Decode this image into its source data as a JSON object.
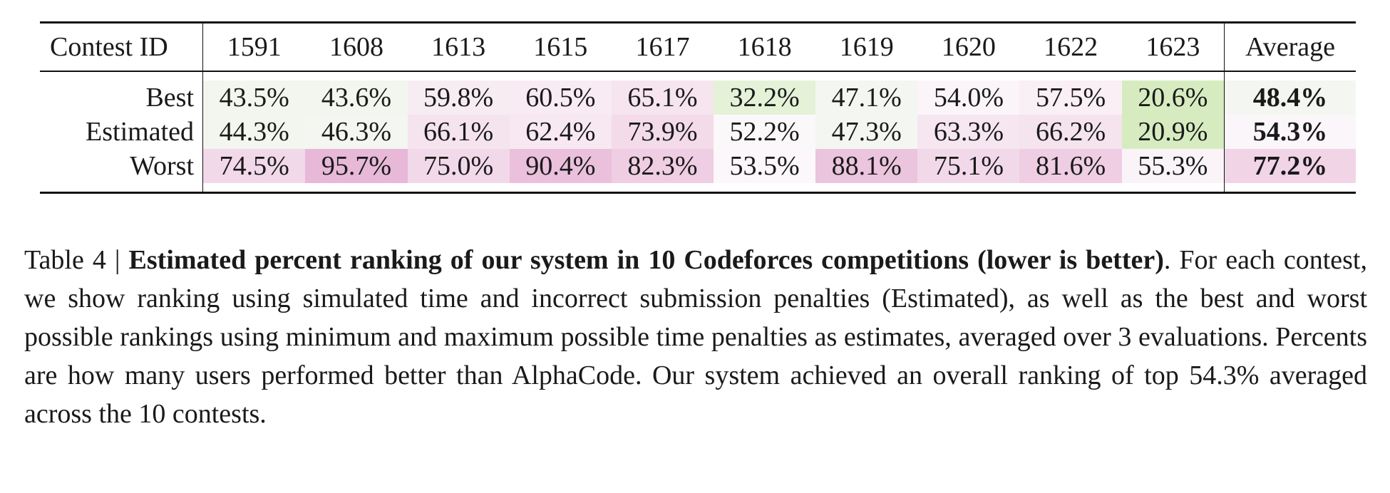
{
  "table": {
    "header_label": "Contest ID",
    "contest_ids": [
      "1591",
      "1608",
      "1613",
      "1615",
      "1617",
      "1618",
      "1619",
      "1620",
      "1622",
      "1623"
    ],
    "average_label": "Average",
    "rows": [
      {
        "label": "Best",
        "values": [
          "43.5%",
          "43.6%",
          "59.8%",
          "60.5%",
          "65.1%",
          "32.2%",
          "47.1%",
          "54.0%",
          "57.5%",
          "20.6%"
        ],
        "colors": [
          "#f2f6ee",
          "#f2f6ee",
          "#f8ecf3",
          "#f8ebf3",
          "#f6e4ef",
          "#e4f2d8",
          "#f4f6f1",
          "#fbf5f9",
          "#f9eff5",
          "#d6ecc0"
        ],
        "average": "48.4%",
        "average_color": "#f4f6f1"
      },
      {
        "label": "Estimated",
        "values": [
          "44.3%",
          "46.3%",
          "66.1%",
          "62.4%",
          "73.9%",
          "52.2%",
          "47.3%",
          "63.3%",
          "66.2%",
          "20.9%"
        ],
        "colors": [
          "#f2f6ee",
          "#f4f6f1",
          "#f5e3ee",
          "#f7e8f1",
          "#f3dbea",
          "#fbf8fa",
          "#f4f6f1",
          "#f6e6f0",
          "#f5e3ee",
          "#d6ecc0"
        ],
        "average": "54.3%",
        "average_color": "#fbf6f9"
      },
      {
        "label": "Worst",
        "values": [
          "74.5%",
          "95.7%",
          "75.0%",
          "90.4%",
          "82.3%",
          "53.5%",
          "88.1%",
          "75.1%",
          "81.6%",
          "55.3%"
        ],
        "colors": [
          "#f2d9e9",
          "#e7b8d8",
          "#f2d9e9",
          "#eac0dc",
          "#efcde3",
          "#fbf7fa",
          "#ebc4de",
          "#f2d9e9",
          "#efcee4",
          "#faf4f8"
        ],
        "average": "77.2%",
        "average_color": "#f1d5e7"
      }
    ]
  },
  "caption": {
    "prefix": "Table 4 | ",
    "bold": "Estimated percent ranking of our system in 10 Codeforces competitions (lower is better)",
    "text": ". For each contest, we show ranking using simulated time and incorrect submission penalties (Estimated), as well as the best and worst possible rankings using minimum and maximum possible time penalties as estimates, averaged over 3 evaluations. Percents are how many users performed better than AlphaCode. Our system achieved an overall ranking of top 54.3% averaged across the 10 contests."
  }
}
